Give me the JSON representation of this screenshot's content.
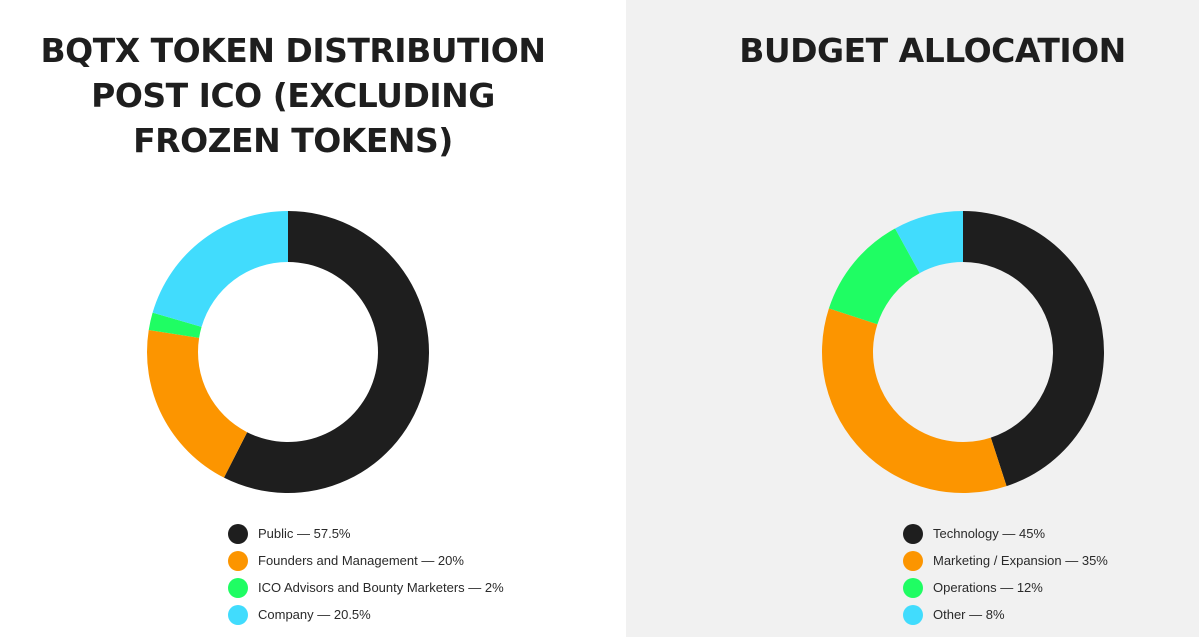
{
  "chart_data": [
    {
      "type": "pie",
      "title": "BQTX TOKEN DISTRIBUTION POST ICO (EXCLUDING FROZEN TOKENS)",
      "categories": [
        "Public",
        "Founders and Management",
        "ICO Advisors and Bounty Marketers",
        "Company"
      ],
      "values": [
        57.5,
        20,
        2,
        20.5
      ],
      "labels": [
        "Public — 57.5%",
        "Founders and Management — 20%",
        "ICO Advisors and Bounty Marketers — 2%",
        "Company — 20.5%"
      ],
      "colors": [
        "#1e1e1e",
        "#fc9500",
        "#1ffd63",
        "#41dcfd"
      ],
      "legend_position": "bottom"
    },
    {
      "type": "pie",
      "title": "BUDGET ALLOCATION",
      "categories": [
        "Technology",
        "Marketing / Expansion",
        "Operations",
        "Other"
      ],
      "values": [
        45,
        35,
        12,
        8
      ],
      "labels": [
        "Technology — 45%",
        "Marketing / Expansion — 35%",
        "Operations — 12%",
        "Other — 8%"
      ],
      "colors": [
        "#1e1e1e",
        "#fc9500",
        "#1ffd63",
        "#41dcfd"
      ],
      "legend_position": "bottom"
    }
  ]
}
